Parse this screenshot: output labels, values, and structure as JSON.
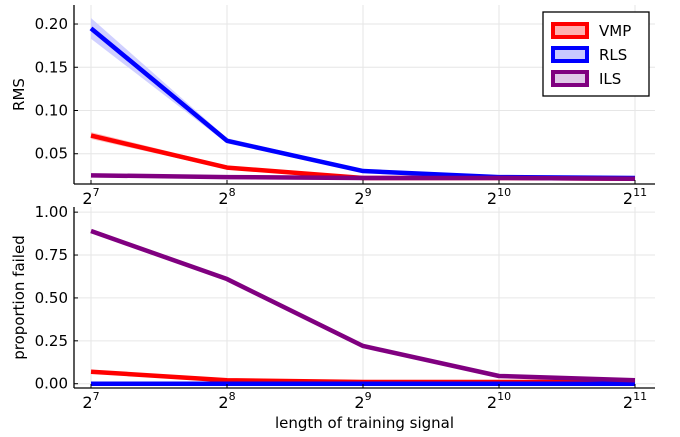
{
  "chart_data": [
    {
      "type": "line",
      "title": "",
      "xlabel": "",
      "ylabel": "RMS",
      "x_scale": "log2",
      "x": [
        128,
        256,
        512,
        1024,
        2048
      ],
      "x_tick_labels": [
        {
          "base": "2",
          "exp": "7"
        },
        {
          "base": "2",
          "exp": "8"
        },
        {
          "base": "2",
          "exp": "9"
        },
        {
          "base": "2",
          "exp": "10"
        },
        {
          "base": "2",
          "exp": "11"
        }
      ],
      "y_ticks": [
        0.05,
        0.1,
        0.15,
        0.2
      ],
      "y_tick_labels": [
        "0.05",
        "0.10",
        "0.15",
        "0.20"
      ],
      "ylim": [
        0.015,
        0.222
      ],
      "grid": true,
      "legend_position": "top-right",
      "series": [
        {
          "name": "VMP",
          "color": "#ff0000",
          "band_color": "#ffb0b0",
          "values": [
            0.071,
            0.034,
            0.022,
            0.022,
            0.021
          ],
          "band": [
            [
              0.067,
              0.075
            ],
            [
              0.032,
              0.036
            ],
            [
              0.021,
              0.023
            ],
            [
              0.021,
              0.023
            ],
            [
              0.02,
              0.022
            ]
          ]
        },
        {
          "name": "RLS",
          "color": "#0000ff",
          "band_color": "#c8c8ff",
          "values": [
            0.195,
            0.065,
            0.03,
            0.023,
            0.022
          ],
          "band": [
            [
              0.183,
              0.207
            ],
            [
              0.062,
              0.068
            ],
            [
              0.028,
              0.032
            ],
            [
              0.022,
              0.024
            ],
            [
              0.021,
              0.023
            ]
          ]
        },
        {
          "name": "ILS",
          "color": "#800080",
          "band_color": "#e0c8e8",
          "values": [
            0.025,
            0.023,
            0.022,
            0.022,
            0.021
          ],
          "band": [
            [
              0.024,
              0.026
            ],
            [
              0.022,
              0.024
            ],
            [
              0.021,
              0.023
            ],
            [
              0.021,
              0.023
            ],
            [
              0.02,
              0.022
            ]
          ]
        }
      ]
    },
    {
      "type": "line",
      "title": "",
      "xlabel": "length of training signal",
      "ylabel": "proportion failed",
      "x_scale": "log2",
      "x": [
        128,
        256,
        512,
        1024,
        2048
      ],
      "x_tick_labels": [
        {
          "base": "2",
          "exp": "7"
        },
        {
          "base": "2",
          "exp": "8"
        },
        {
          "base": "2",
          "exp": "9"
        },
        {
          "base": "2",
          "exp": "10"
        },
        {
          "base": "2",
          "exp": "11"
        }
      ],
      "y_ticks": [
        0.0,
        0.25,
        0.5,
        0.75,
        1.0
      ],
      "y_tick_labels": [
        "0.00",
        "0.25",
        "0.50",
        "0.75",
        "1.00"
      ],
      "ylim": [
        -0.025,
        1.03
      ],
      "grid": true,
      "series": [
        {
          "name": "VMP",
          "color": "#ff0000",
          "values": [
            0.07,
            0.02,
            0.01,
            0.01,
            0.01
          ]
        },
        {
          "name": "RLS",
          "color": "#0000ff",
          "values": [
            0.0,
            0.0,
            0.0,
            0.0,
            0.0
          ]
        },
        {
          "name": "ILS",
          "color": "#800080",
          "values": [
            0.89,
            0.61,
            0.22,
            0.045,
            0.02
          ]
        }
      ]
    }
  ]
}
